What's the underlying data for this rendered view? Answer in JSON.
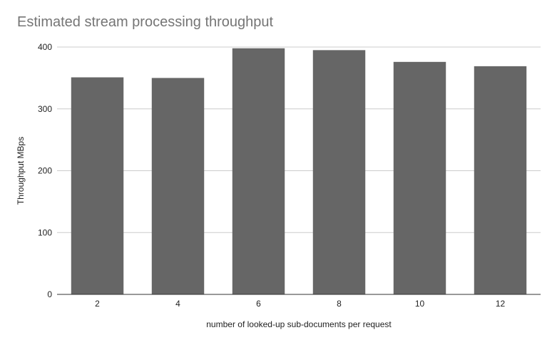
{
  "chart_data": {
    "type": "bar",
    "title": "Estimated stream processing throughput",
    "xlabel": "number of looked-up sub-documents per request",
    "ylabel": "Throughput MBps",
    "categories": [
      "2",
      "4",
      "6",
      "8",
      "10",
      "12"
    ],
    "values": [
      351,
      350,
      398,
      395,
      376,
      369
    ],
    "ylim": [
      0,
      400
    ],
    "yticks": [
      0,
      100,
      200,
      300,
      400
    ],
    "grid": true,
    "legend": "none",
    "colors": {
      "bar": "#666666",
      "grid": "#cccccc",
      "axis": "#333333",
      "title": "#757575"
    }
  }
}
